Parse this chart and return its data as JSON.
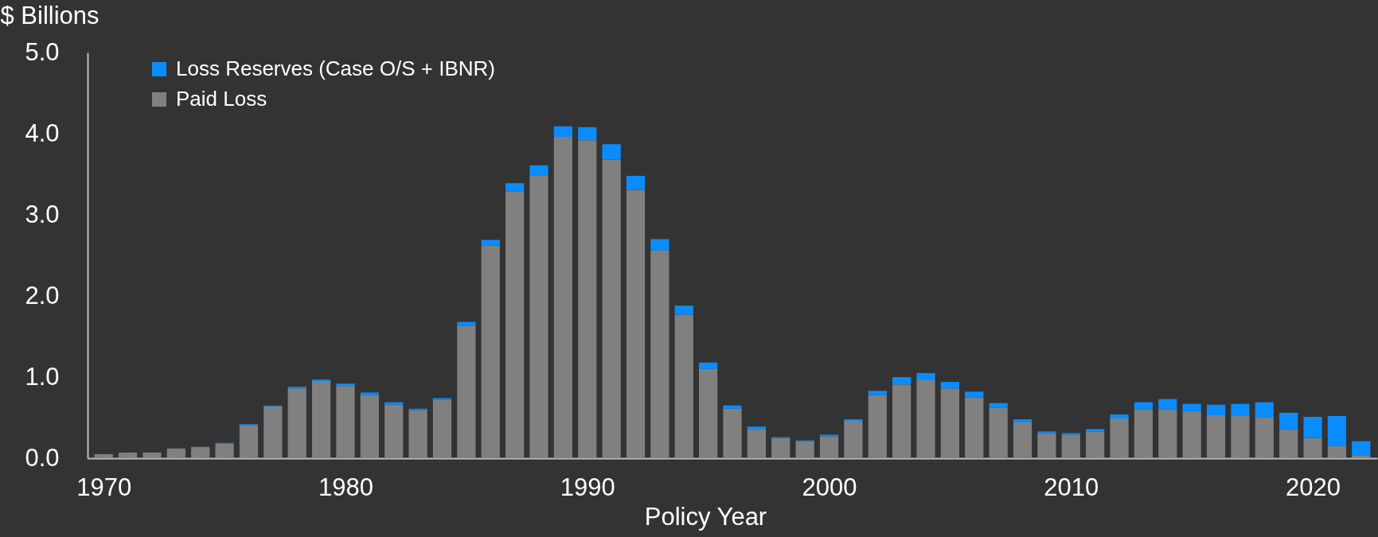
{
  "chart_data": {
    "type": "bar",
    "ylabel": "$ Billions",
    "xlabel": "Policy Year",
    "stacked": true,
    "legend": "top left",
    "x": [
      1970,
      1971,
      1972,
      1973,
      1974,
      1975,
      1976,
      1977,
      1978,
      1979,
      1980,
      1981,
      1982,
      1983,
      1984,
      1985,
      1986,
      1987,
      1988,
      1989,
      1990,
      1991,
      1992,
      1993,
      1994,
      1995,
      1996,
      1997,
      1998,
      1999,
      2000,
      2001,
      2002,
      2003,
      2004,
      2005,
      2006,
      2007,
      2008,
      2009,
      2010,
      2011,
      2012,
      2013,
      2014,
      2015,
      2016,
      2017,
      2018,
      2019,
      2020,
      2021,
      2022
    ],
    "series": [
      {
        "name": "Paid Loss",
        "color": "#808080",
        "values": [
          0.05,
          0.07,
          0.07,
          0.12,
          0.14,
          0.18,
          0.41,
          0.64,
          0.86,
          0.95,
          0.89,
          0.78,
          0.66,
          0.59,
          0.72,
          1.63,
          2.62,
          3.29,
          3.48,
          3.96,
          3.92,
          3.68,
          3.31,
          2.56,
          1.77,
          1.1,
          0.61,
          0.36,
          0.25,
          0.21,
          0.27,
          0.46,
          0.78,
          0.91,
          0.96,
          0.86,
          0.75,
          0.62,
          0.44,
          0.31,
          0.29,
          0.33,
          0.49,
          0.6,
          0.6,
          0.58,
          0.53,
          0.52,
          0.5,
          0.36,
          0.25,
          0.15,
          0.03
        ]
      },
      {
        "name": "Loss Reserves (Case O/S + IBNR)",
        "color": "#0a8cff",
        "values": [
          null,
          null,
          null,
          null,
          null,
          0.01,
          0.01,
          0.01,
          0.02,
          0.02,
          0.03,
          0.03,
          0.03,
          0.02,
          0.02,
          0.05,
          0.07,
          0.1,
          0.13,
          0.13,
          0.16,
          0.19,
          0.17,
          0.14,
          0.11,
          0.08,
          0.04,
          0.03,
          0.01,
          0.01,
          0.02,
          0.02,
          0.05,
          0.09,
          0.09,
          0.08,
          0.07,
          0.06,
          0.04,
          0.02,
          0.02,
          0.03,
          0.05,
          0.09,
          0.13,
          0.09,
          0.13,
          0.15,
          0.19,
          0.2,
          0.26,
          0.37,
          0.18
        ]
      }
    ],
    "xlim": [
      1969.5,
      2022.5
    ],
    "xticks": [
      1970,
      1980,
      1990,
      2000,
      2010,
      2020
    ],
    "ylim": [
      0,
      5
    ],
    "yticks": [
      {
        "value": 0,
        "label": "0.0"
      },
      {
        "value": 1,
        "label": "1.0"
      },
      {
        "value": 2,
        "label": "2.0"
      },
      {
        "value": 3,
        "label": "3.0"
      },
      {
        "value": 4,
        "label": "4.0"
      },
      {
        "value": 5,
        "label": "5.0"
      }
    ]
  }
}
